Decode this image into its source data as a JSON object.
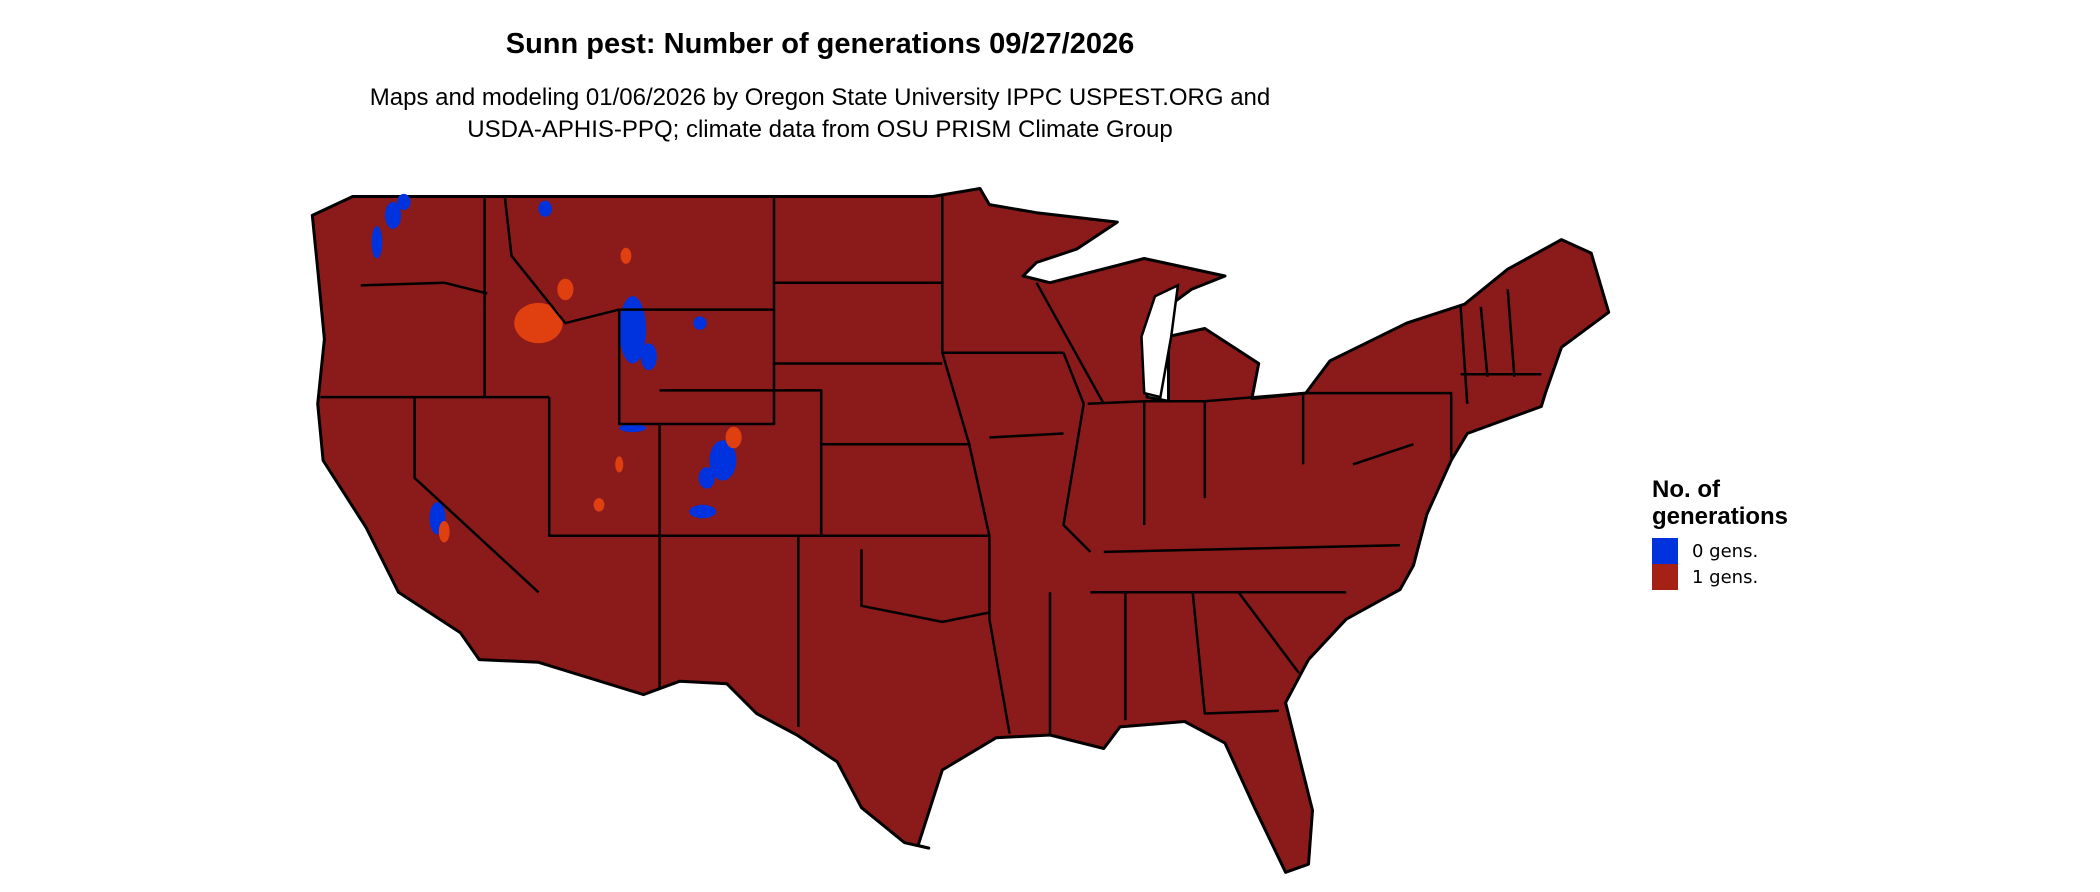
{
  "title": "Sunn pest: Number of generations 09/27/2026",
  "subtitle_line1": "Maps and modeling 01/06/2026 by Oregon State University IPPC USPEST.ORG and",
  "subtitle_line2": "USDA-APHIS-PPQ; climate data from OSU PRISM Climate Group",
  "map": {
    "region": "Contiguous United States",
    "base_color": "#8b1a1a",
    "border_color": "#000000"
  },
  "legend": {
    "title_line1": "No. of",
    "title_line2": "generations",
    "items": [
      {
        "label": "0 gens.",
        "color": "#0033dd"
      },
      {
        "label": "1 gens.",
        "color": "#a52015"
      }
    ]
  }
}
